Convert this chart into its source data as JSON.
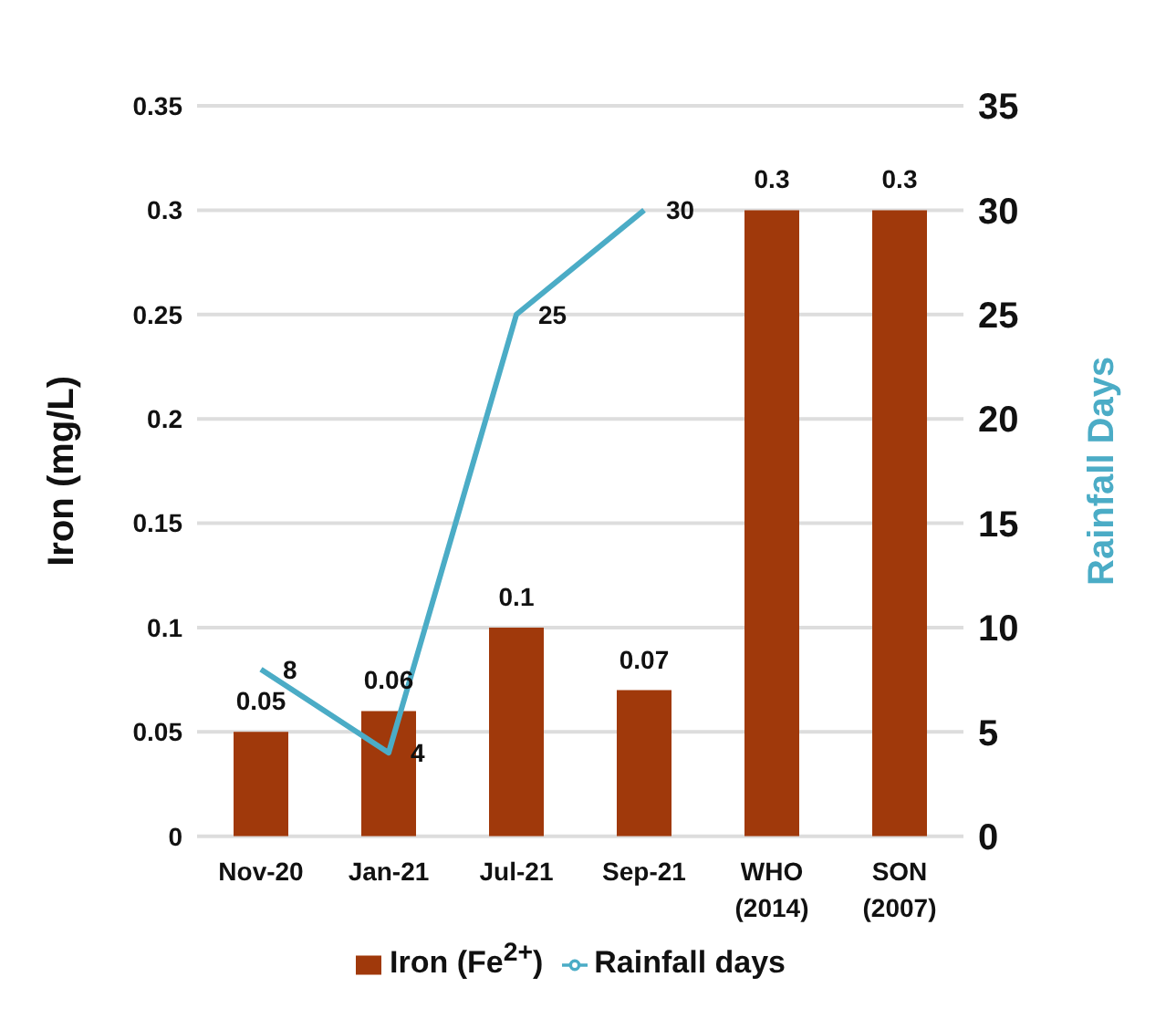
{
  "chart_data": {
    "type": "bar",
    "ylabel": "Iron (mg/L)",
    "y2label": "Rainfall Days",
    "categories": [
      "Nov-20",
      "Jan-21",
      "Jul-21",
      "Sep-21",
      "WHO\n(2014)",
      "SON\n(2007)"
    ],
    "series": [
      {
        "name": "Iron (Fe$^{2+}$)",
        "color": "#a0390b",
        "values": [
          0.05,
          0.06,
          0.1,
          0.07,
          0.3,
          0.3
        ]
      },
      {
        "name": "Rainfall days",
        "type": "line",
        "axis": "y2",
        "color": "#4bacc6",
        "values": [
          8,
          4,
          25,
          30,
          null,
          null
        ]
      }
    ],
    "ylim": [
      0,
      0.35
    ],
    "yticks": [
      0,
      0.05,
      0.1,
      0.15,
      0.2,
      0.25,
      0.3,
      0.35
    ],
    "y2lim": [
      0,
      35
    ],
    "y2ticks": [
      0,
      5,
      10,
      15,
      20,
      25,
      30,
      35
    ],
    "grid": "y",
    "legend": "bottom",
    "marker": "none",
    "line_style": "solid",
    "data_labels": true
  }
}
